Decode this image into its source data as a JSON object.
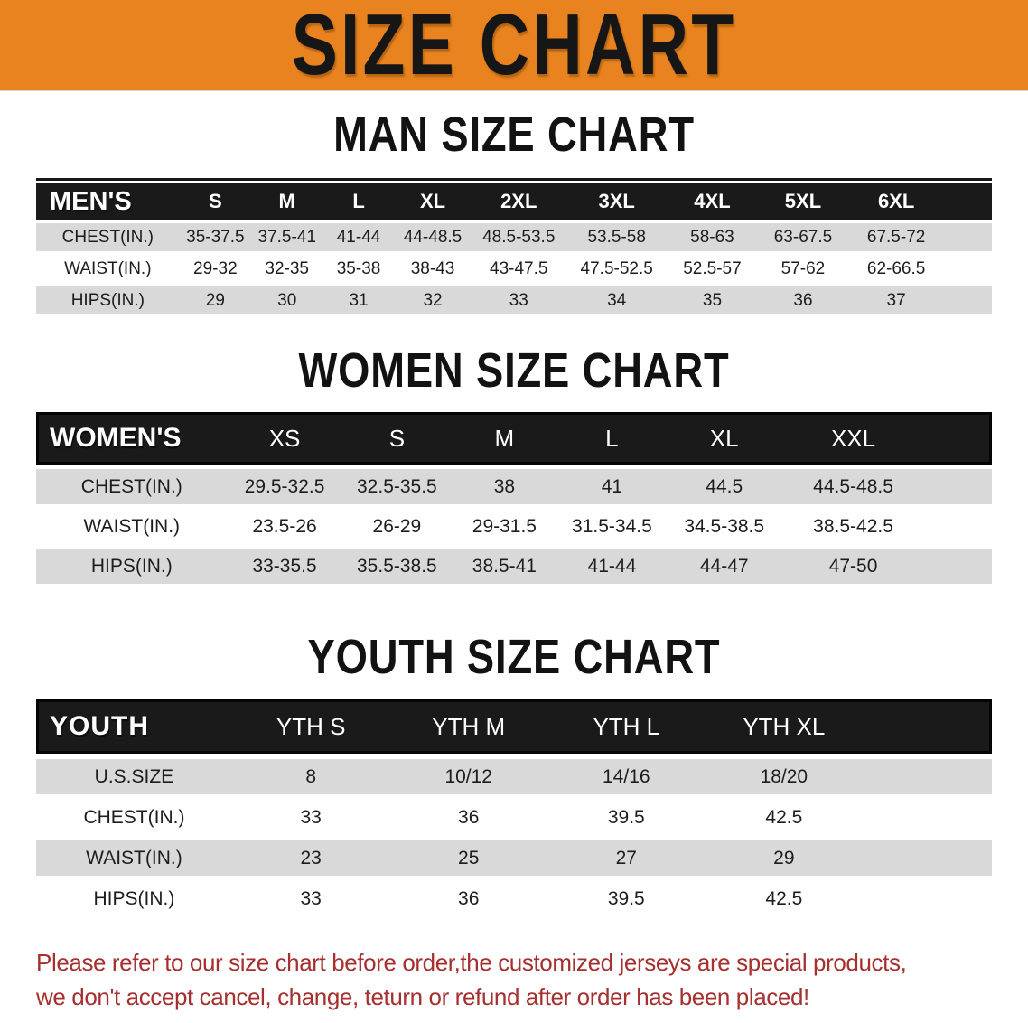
{
  "banner": {
    "title": "SIZE CHART",
    "bg_color": "#E8831F",
    "title_color": "#161616"
  },
  "sections": [
    {
      "heading": "MAN SIZE CHART",
      "table": {
        "label_header": "MEN'S",
        "columns": [
          "S",
          "M",
          "L",
          "XL",
          "2XL",
          "3XL",
          "4XL",
          "5XL",
          "6XL"
        ],
        "rows": [
          {
            "label": "CHEST(IN.)",
            "values": [
              "35-37.5",
              "37.5-41",
              "41-44",
              "44-48.5",
              "48.5-53.5",
              "53.5-58",
              "58-63",
              "63-67.5",
              "67.5-72"
            ]
          },
          {
            "label": "WAIST(IN.)",
            "values": [
              "29-32",
              "32-35",
              "35-38",
              "38-43",
              "43-47.5",
              "47.5-52.5",
              "52.5-57",
              "57-62",
              "62-66.5"
            ]
          },
          {
            "label": "HIPS(IN.)",
            "values": [
              "29",
              "30",
              "31",
              "32",
              "33",
              "34",
              "35",
              "36",
              "37"
            ]
          }
        ]
      }
    },
    {
      "heading": "WOMEN SIZE CHART",
      "table": {
        "label_header": "WOMEN'S",
        "columns": [
          "XS",
          "S",
          "M",
          "L",
          "XL",
          "XXL"
        ],
        "rows": [
          {
            "label": "CHEST(IN.)",
            "values": [
              "29.5-32.5",
              "32.5-35.5",
              "38",
              "41",
              "44.5",
              "44.5-48.5"
            ]
          },
          {
            "label": "WAIST(IN.)",
            "values": [
              "23.5-26",
              "26-29",
              "29-31.5",
              "31.5-34.5",
              "34.5-38.5",
              "38.5-42.5"
            ]
          },
          {
            "label": "HIPS(IN.)",
            "values": [
              "33-35.5",
              "35.5-38.5",
              "38.5-41",
              "41-44",
              "44-47",
              "47-50"
            ]
          }
        ]
      }
    },
    {
      "heading": "YOUTH SIZE CHART",
      "table": {
        "label_header": "YOUTH",
        "columns": [
          "YTH S",
          "YTH M",
          "YTH L",
          "YTH XL"
        ],
        "rows": [
          {
            "label": "U.S.SIZE",
            "values": [
              "8",
              "10/12",
              "14/16",
              "18/20"
            ]
          },
          {
            "label": "CHEST(IN.)",
            "values": [
              "33",
              "36",
              "39.5",
              "42.5"
            ]
          },
          {
            "label": "WAIST(IN.)",
            "values": [
              "23",
              "25",
              "27",
              "29"
            ]
          },
          {
            "label": "HIPS(IN.)",
            "values": [
              "33",
              "36",
              "39.5",
              "42.5"
            ]
          }
        ]
      }
    }
  ],
  "note": {
    "color": "#A62F2F",
    "lines": [
      "Please refer to our size chart before order,the customized jerseys are special products,",
      "we don't accept cancel, change, teturn or refund after order has been placed!"
    ]
  },
  "colors": {
    "header_bar": "#1A1A1A",
    "row_stripe": "#D9D9D9"
  }
}
